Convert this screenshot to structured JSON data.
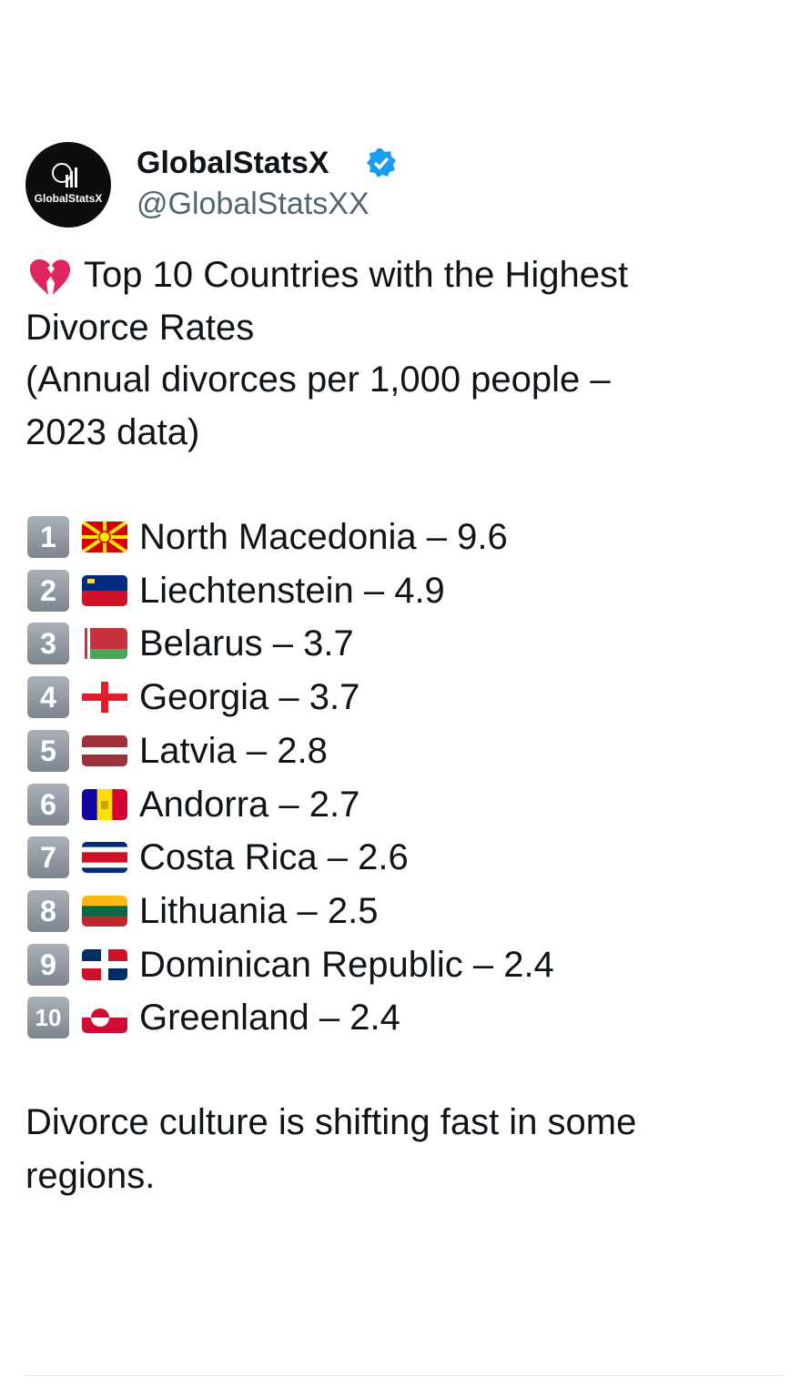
{
  "profile": {
    "avatar_label": "GlobalStatsX",
    "name": "GlobalStatsX",
    "handle": "@GlobalStatsXX"
  },
  "post": {
    "title_lines": [
      "Top 10 Countries with the Highest",
      "Divorce Rates",
      "(Annual divorces per 1,000 people –",
      "2023 data)"
    ],
    "items": [
      {
        "rank": 1,
        "text": "North Macedonia – 9.6"
      },
      {
        "rank": 2,
        "text": "Liechtenstein – 4.9"
      },
      {
        "rank": 3,
        "text": "Belarus – 3.7"
      },
      {
        "rank": 4,
        "text": "Georgia – 3.7"
      },
      {
        "rank": 5,
        "text": "Latvia – 2.8"
      },
      {
        "rank": 6,
        "text": "Andorra – 2.7"
      },
      {
        "rank": 7,
        "text": "Costa Rica – 2.6"
      },
      {
        "rank": 8,
        "text": "Lithuania – 2.5"
      },
      {
        "rank": 9,
        "text": "Dominican Republic – 2.4"
      },
      {
        "rank": 10,
        "text": "Greenland – 2.4"
      }
    ],
    "footer_lines": [
      "Divorce culture is shifting fast in some",
      "regions."
    ]
  }
}
